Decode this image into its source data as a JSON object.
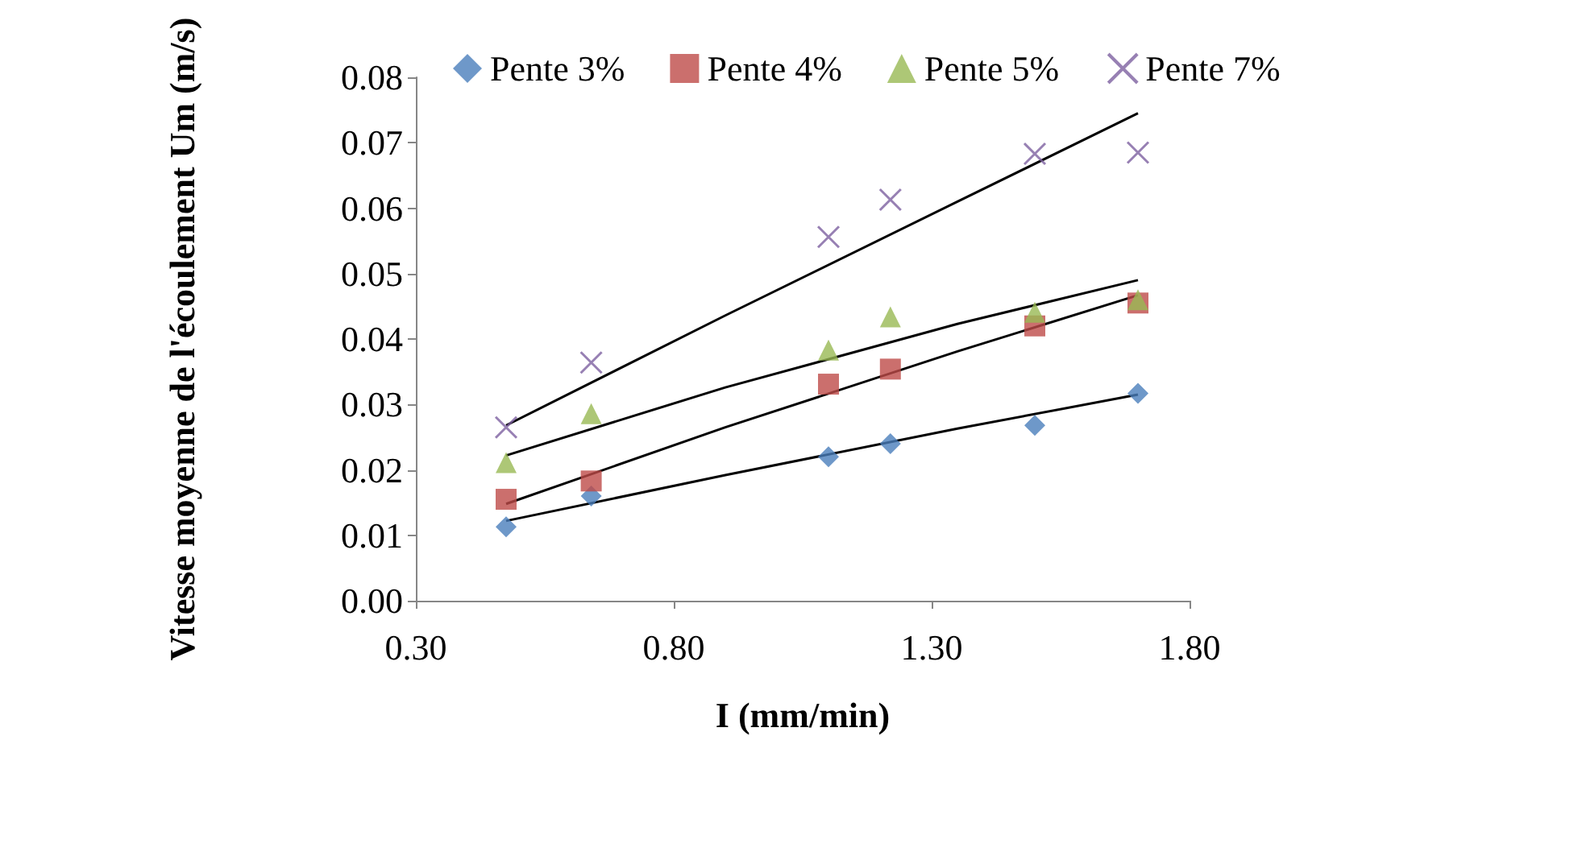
{
  "chart_data": {
    "type": "scatter",
    "xlabel": "I (mm/min)",
    "ylabel": "Vitesse moyenne de l'écoulement Um (m/s)",
    "x": [
      0.475,
      0.64,
      1.1,
      1.22,
      1.5,
      1.7
    ],
    "series": [
      {
        "name": "Pente 3%",
        "color": "#4a7ebb",
        "marker": "diamond",
        "values": [
          0.0113,
          0.016,
          0.022,
          0.024,
          0.0268,
          0.0317
        ]
      },
      {
        "name": "Pente 4%",
        "color": "#be4b48",
        "marker": "square",
        "values": [
          0.0155,
          0.0183,
          0.0331,
          0.0354,
          0.042,
          0.0455
        ]
      },
      {
        "name": "Pente 5%",
        "color": "#98b954",
        "marker": "triangle",
        "values": [
          0.0211,
          0.0286,
          0.0383,
          0.0434,
          0.0441,
          0.046
        ]
      },
      {
        "name": "Pente 7%",
        "color": "#7d60a0",
        "marker": "cross",
        "values": [
          0.0265,
          0.0364,
          0.0556,
          0.0613,
          0.0683,
          0.0685
        ]
      },
      {
        "type": "line",
        "color": "#000000",
        "marker": "none",
        "x": [
          0.475,
          0.9,
          1.35,
          1.7
        ],
        "values": [
          0.0122,
          0.0192,
          0.0263,
          0.0315
        ]
      },
      {
        "type": "line",
        "color": "#000000",
        "marker": "none",
        "x": [
          0.475,
          0.9,
          1.35,
          1.7
        ],
        "values": [
          0.0148,
          0.0265,
          0.0381,
          0.0467
        ]
      },
      {
        "type": "line",
        "color": "#000000",
        "marker": "none",
        "x": [
          0.475,
          0.9,
          1.35,
          1.7
        ],
        "values": [
          0.0222,
          0.0326,
          0.0423,
          0.049
        ]
      },
      {
        "type": "line",
        "color": "#000000",
        "marker": "none",
        "x": [
          0.475,
          0.9,
          1.35,
          1.7
        ],
        "values": [
          0.0268,
          0.0436,
          0.061,
          0.0745
        ]
      }
    ],
    "xlim": [
      0.3,
      1.8
    ],
    "xticks": [
      {
        "value": 0.3,
        "label": "0.30"
      },
      {
        "value": 0.8,
        "label": "0.80"
      },
      {
        "value": 1.3,
        "label": "1.30"
      },
      {
        "value": 1.8,
        "label": "1.80"
      }
    ],
    "ylim": [
      0,
      0.08
    ],
    "yticks": [
      {
        "value": 0,
        "label": "0.00"
      },
      {
        "value": 0.01,
        "label": "0.01"
      },
      {
        "value": 0.02,
        "label": "0.02"
      },
      {
        "value": 0.03,
        "label": "0.03"
      },
      {
        "value": 0.04,
        "label": "0.04"
      },
      {
        "value": 0.05,
        "label": "0.05"
      },
      {
        "value": 0.06,
        "label": "0.06"
      },
      {
        "value": 0.07,
        "label": "0.07"
      },
      {
        "value": 0.08,
        "label": "0.08"
      }
    ],
    "grid": false,
    "legend": "top"
  }
}
